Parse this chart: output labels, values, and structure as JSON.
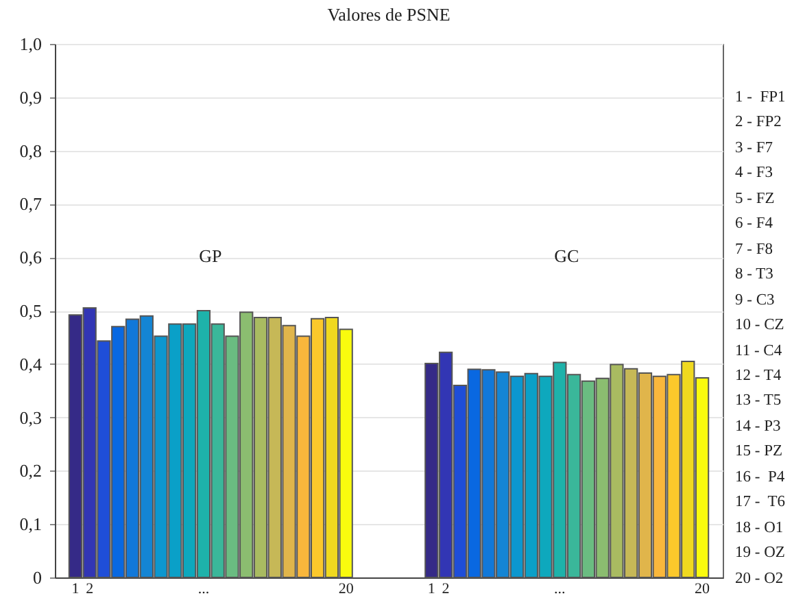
{
  "chart_data": {
    "type": "bar",
    "title": "Valores de PSNE",
    "categories": [
      "1",
      "2",
      null,
      null,
      null,
      null,
      null,
      null,
      null,
      "...",
      null,
      null,
      null,
      null,
      null,
      null,
      null,
      null,
      null,
      "20",
      null,
      null,
      null,
      null,
      null,
      "1",
      "2",
      null,
      null,
      null,
      null,
      null,
      null,
      null,
      "...",
      null,
      null,
      null,
      null,
      null,
      null,
      null,
      null,
      null,
      "20"
    ],
    "values": [
      0.492,
      0.505,
      0.443,
      0.47,
      0.484,
      0.49,
      0.452,
      0.475,
      0.475,
      0.5,
      0.475,
      0.452,
      0.497,
      0.487,
      0.487,
      0.472,
      0.452,
      0.485,
      0.487,
      0.465,
      null,
      null,
      null,
      null,
      null,
      0.401,
      0.422,
      0.36,
      0.39,
      0.389,
      0.385,
      0.377,
      0.382,
      0.377,
      0.403,
      0.38,
      0.368,
      0.373,
      0.399,
      0.391,
      0.383,
      0.377,
      0.38,
      0.405,
      0.374
    ],
    "colors": [
      "#352a87",
      "#3236b4",
      "#1f4ed8",
      "#0968e1",
      "#1178d9",
      "#1485d4",
      "#0c97cf",
      "#0aa0c8",
      "#0ea8bd",
      "#1eb2aa",
      "#3ab79a",
      "#6abc81",
      "#8bbd70",
      "#a9bb61",
      "#c6b857",
      "#e0b54b",
      "#f9b73c",
      "#fbc82b",
      "#f0d91f",
      "#f9fb0e",
      null,
      null,
      null,
      null,
      null,
      "#352a87",
      "#3236b4",
      "#1f4ed8",
      "#0968e1",
      "#1178d9",
      "#1485d4",
      "#0c97cf",
      "#0aa0c8",
      "#0ea8bd",
      "#1eb2aa",
      "#3ab79a",
      "#6abc81",
      "#8bbd70",
      "#a9bb61",
      "#c6b857",
      "#e0b54b",
      "#f9b73c",
      "#fbc82b",
      "#f0d91f",
      "#f9fb0e"
    ],
    "ylim": [
      0,
      1
    ],
    "yticks": [
      {
        "value": 0,
        "label": "0"
      },
      {
        "value": 0.1,
        "label": "0,1"
      },
      {
        "value": 0.2,
        "label": "0,2"
      },
      {
        "value": 0.3,
        "label": "0,3"
      },
      {
        "value": 0.4,
        "label": "0,4"
      },
      {
        "value": 0.5,
        "label": "0,5"
      },
      {
        "value": 0.6,
        "label": "0,6"
      },
      {
        "value": 0.7,
        "label": "0,7"
      },
      {
        "value": 0.8,
        "label": "0,8"
      },
      {
        "value": 0.9,
        "label": "0,9"
      },
      {
        "value": 1,
        "label": "1,0"
      }
    ],
    "grid": "y",
    "annotations": [
      "GP",
      "GC",
      "1 -  FP1",
      "2 - FP2",
      "3 - F7",
      "4 - F3",
      "5 - FZ",
      "6 - F4",
      "7 - F8",
      "8 - T3",
      "9 - C3",
      "10 - CZ",
      "11 - C4",
      "12 - T4",
      "13 - T5",
      "14 - P3",
      "15 - PZ",
      "16 -  P4",
      "17 -  T6",
      "18 - O1",
      "19 - OZ",
      "20 - O2"
    ]
  }
}
